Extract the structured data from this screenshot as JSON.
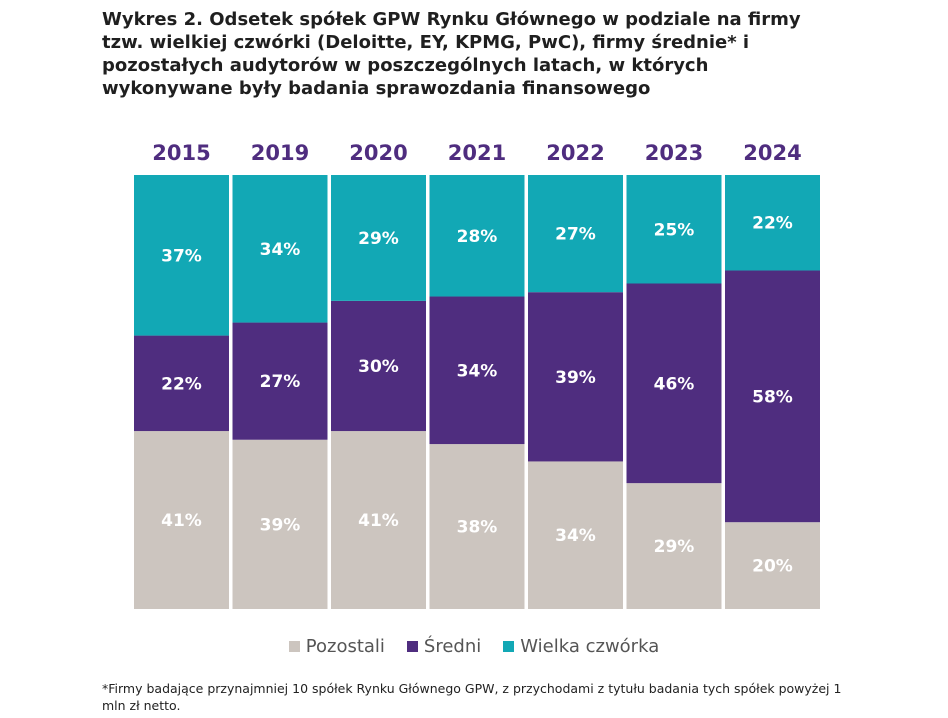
{
  "chart_data": {
    "type": "bar",
    "stacked": true,
    "normalized_percent": true,
    "title": "Wykres 2. Odsetek spółek GPW Rynku Głównego w podziale na firmy tzw. wielkiej czwórki (Deloitte, EY, KPMG, PwC), firmy średnie* i pozostałych audytorów w poszczególnych latach, w których wykonywane były badania sprawozdania finansowego",
    "categories": [
      "2015",
      "2019",
      "2020",
      "2021",
      "2022",
      "2023",
      "2024"
    ],
    "series": [
      {
        "name": "Pozostali",
        "color": "#ccc5bf",
        "values": [
          41,
          39,
          41,
          38,
          34,
          29,
          20
        ],
        "labels": [
          "41%",
          "39%",
          "41%",
          "38%",
          "34%",
          "29%",
          "20%"
        ]
      },
      {
        "name": "Średni",
        "color": "#4f2d7f",
        "values": [
          22,
          27,
          30,
          34,
          39,
          46,
          58
        ],
        "labels": [
          "22%",
          "27%",
          "30%",
          "34%",
          "39%",
          "46%",
          "58%"
        ]
      },
      {
        "name": "Wielka czwórka",
        "color": "#12a8b5",
        "values": [
          37,
          34,
          29,
          28,
          27,
          25,
          22
        ],
        "labels": [
          "37%",
          "34%",
          "29%",
          "28%",
          "27%",
          "25%",
          "22%"
        ]
      }
    ],
    "category_label_color": "#4f2d7f",
    "legend_position": "bottom",
    "grid": false
  },
  "footnote": "*Firmy badające przynajmniej 10 spółek Rynku Głównego GPW, z przychodami z tytułu badania tych spółek powyżej 1 mln zł netto."
}
